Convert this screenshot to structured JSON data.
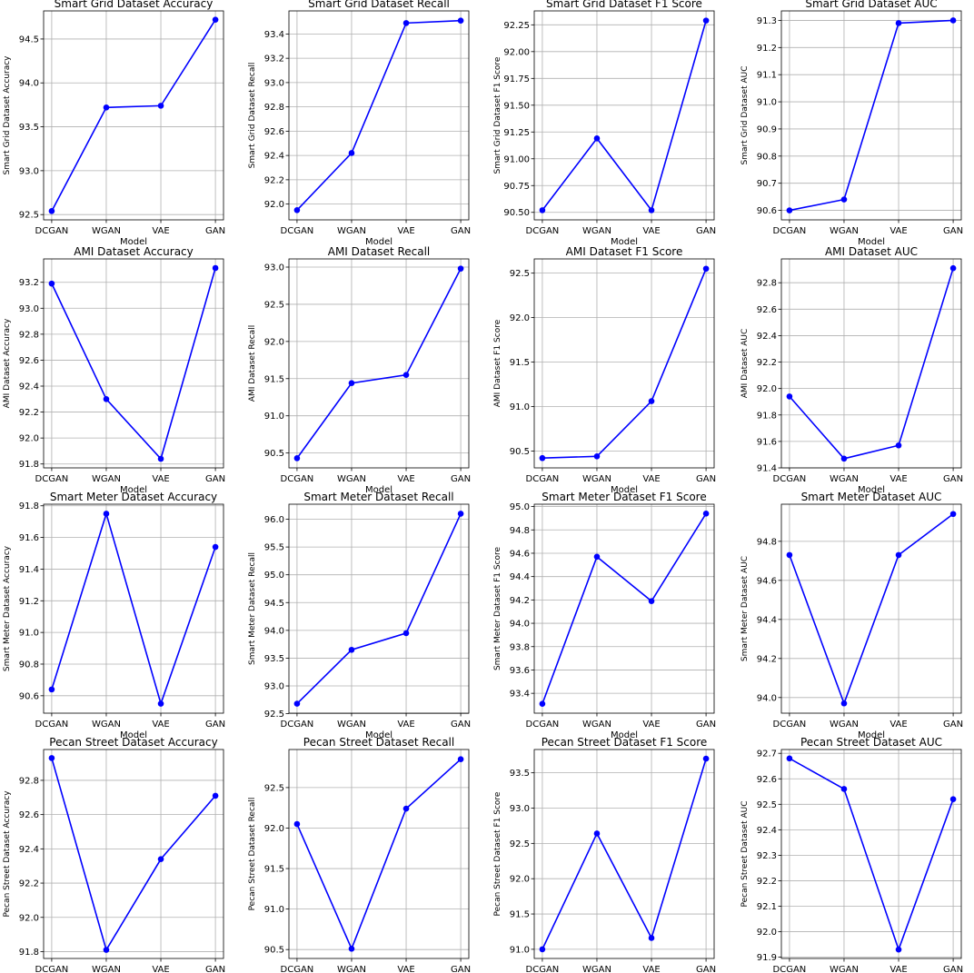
{
  "chart_data": [
    {
      "type": "line",
      "title": "Smart Grid Dataset Accuracy",
      "xlabel": "Model",
      "ylabel": "Smart Grid Dataset Accuracy",
      "categories": [
        "DCGAN",
        "WGAN",
        "VAE",
        "GAN"
      ],
      "values": [
        92.54,
        93.72,
        93.74,
        94.72
      ],
      "yticks": [
        "92.5",
        "93.0",
        "93.5",
        "94.0",
        "94.5"
      ],
      "ylim": [
        92.44,
        94.82
      ],
      "grid": true,
      "color": "#0000ff"
    },
    {
      "type": "line",
      "title": "Smart Grid Dataset Recall",
      "xlabel": "Model",
      "ylabel": "Smart Grid Dataset Recall",
      "categories": [
        "DCGAN",
        "WGAN",
        "VAE",
        "GAN"
      ],
      "values": [
        91.95,
        92.42,
        93.49,
        93.51
      ],
      "yticks": [
        "92.0",
        "92.2",
        "92.4",
        "92.6",
        "92.8",
        "93.0",
        "93.2",
        "93.4"
      ],
      "ylim": [
        91.87,
        93.59
      ],
      "grid": true,
      "color": "#0000ff"
    },
    {
      "type": "line",
      "title": "Smart Grid Dataset F1 Score",
      "xlabel": "Model",
      "ylabel": "Smart Grid Dataset F1 Score",
      "categories": [
        "DCGAN",
        "WGAN",
        "VAE",
        "GAN"
      ],
      "values": [
        90.52,
        91.19,
        90.52,
        92.29
      ],
      "yticks": [
        "90.50",
        "90.75",
        "91.00",
        "91.25",
        "91.50",
        "91.75",
        "92.00",
        "92.25"
      ],
      "ylim": [
        90.43,
        92.38
      ],
      "grid": true,
      "color": "#0000ff"
    },
    {
      "type": "line",
      "title": "Smart Grid Dataset AUC",
      "xlabel": "Model",
      "ylabel": "Smart Grid Dataset AUC",
      "categories": [
        "DCGAN",
        "WGAN",
        "VAE",
        "GAN"
      ],
      "values": [
        90.6,
        90.64,
        91.29,
        91.3
      ],
      "yticks": [
        "90.6",
        "90.7",
        "90.8",
        "90.9",
        "91.0",
        "91.1",
        "91.2",
        "91.3"
      ],
      "ylim": [
        90.565,
        91.335
      ],
      "grid": true,
      "color": "#0000ff"
    },
    {
      "type": "line",
      "title": "AMI Dataset Accuracy",
      "xlabel": "Model",
      "ylabel": "AMI Dataset Accuracy",
      "categories": [
        "DCGAN",
        "WGAN",
        "VAE",
        "GAN"
      ],
      "values": [
        93.19,
        92.3,
        91.84,
        93.31
      ],
      "yticks": [
        "91.8",
        "92.0",
        "92.2",
        "92.4",
        "92.6",
        "92.8",
        "93.0",
        "93.2"
      ],
      "ylim": [
        91.77,
        93.38
      ],
      "grid": true,
      "color": "#0000ff"
    },
    {
      "type": "line",
      "title": "AMI Dataset Recall",
      "xlabel": "Model",
      "ylabel": "AMI Dataset Recall",
      "categories": [
        "DCGAN",
        "WGAN",
        "VAE",
        "GAN"
      ],
      "values": [
        90.43,
        91.44,
        91.55,
        92.98
      ],
      "yticks": [
        "90.5",
        "91.0",
        "91.5",
        "92.0",
        "92.5",
        "93.0"
      ],
      "ylim": [
        90.3,
        93.11
      ],
      "grid": true,
      "color": "#0000ff"
    },
    {
      "type": "line",
      "title": "AMI Dataset F1 Score",
      "xlabel": "Model",
      "ylabel": "AMI Dataset F1 Score",
      "categories": [
        "DCGAN",
        "WGAN",
        "VAE",
        "GAN"
      ],
      "values": [
        90.42,
        90.44,
        91.06,
        92.55
      ],
      "yticks": [
        "90.5",
        "91.0",
        "91.5",
        "92.0",
        "92.5"
      ],
      "ylim": [
        90.31,
        92.66
      ],
      "grid": true,
      "color": "#0000ff"
    },
    {
      "type": "line",
      "title": "AMI Dataset AUC",
      "xlabel": "Model",
      "ylabel": "AMI Dataset AUC",
      "categories": [
        "DCGAN",
        "WGAN",
        "VAE",
        "GAN"
      ],
      "values": [
        91.94,
        91.47,
        91.57,
        92.91
      ],
      "yticks": [
        "91.4",
        "91.6",
        "91.8",
        "92.0",
        "92.2",
        "92.4",
        "92.6",
        "92.8"
      ],
      "ylim": [
        91.4,
        92.98
      ],
      "grid": true,
      "color": "#0000ff"
    },
    {
      "type": "line",
      "title": "Smart Meter Dataset Accuracy",
      "xlabel": "Model",
      "ylabel": "Smart Meter Dataset Accuracy",
      "categories": [
        "DCGAN",
        "WGAN",
        "VAE",
        "GAN"
      ],
      "values": [
        90.64,
        91.75,
        90.55,
        91.54
      ],
      "yticks": [
        "90.6",
        "90.8",
        "91.0",
        "91.2",
        "91.4",
        "91.6",
        "91.8"
      ],
      "ylim": [
        90.49,
        91.81
      ],
      "grid": true,
      "color": "#0000ff"
    },
    {
      "type": "line",
      "title": "Smart Meter Dataset Recall",
      "xlabel": "Model",
      "ylabel": "Smart Meter Dataset Recall",
      "categories": [
        "DCGAN",
        "WGAN",
        "VAE",
        "GAN"
      ],
      "values": [
        92.68,
        93.65,
        93.95,
        96.1
      ],
      "yticks": [
        "92.5",
        "93.0",
        "93.5",
        "94.0",
        "94.5",
        "95.0",
        "95.5",
        "96.0"
      ],
      "ylim": [
        92.51,
        96.27
      ],
      "grid": true,
      "color": "#0000ff"
    },
    {
      "type": "line",
      "title": "Smart Meter Dataset F1 Score",
      "xlabel": "Model",
      "ylabel": "Smart Meter Dataset F1 Score",
      "categories": [
        "DCGAN",
        "WGAN",
        "VAE",
        "GAN"
      ],
      "values": [
        93.31,
        94.57,
        94.19,
        94.94
      ],
      "yticks": [
        "93.4",
        "93.6",
        "93.8",
        "94.0",
        "94.2",
        "94.4",
        "94.6",
        "94.8",
        "95.0"
      ],
      "ylim": [
        93.23,
        95.02
      ],
      "grid": true,
      "color": "#0000ff"
    },
    {
      "type": "line",
      "title": "Smart Meter Dataset AUC",
      "xlabel": "Model",
      "ylabel": "Smart Meter Dataset AUC",
      "categories": [
        "DCGAN",
        "WGAN",
        "VAE",
        "GAN"
      ],
      "values": [
        94.73,
        93.97,
        94.73,
        94.94
      ],
      "yticks": [
        "94.0",
        "94.2",
        "94.4",
        "94.6",
        "94.8"
      ],
      "ylim": [
        93.92,
        94.99
      ],
      "grid": true,
      "color": "#0000ff"
    },
    {
      "type": "line",
      "title": "Pecan Street Dataset Accuracy",
      "xlabel": "Model",
      "ylabel": "Pecan Street Dataset Accuracy",
      "categories": [
        "DCGAN",
        "WGAN",
        "VAE",
        "GAN"
      ],
      "values": [
        92.93,
        91.81,
        92.34,
        92.71
      ],
      "yticks": [
        "91.8",
        "92.0",
        "92.2",
        "92.4",
        "92.6",
        "92.8"
      ],
      "ylim": [
        91.76,
        92.98
      ],
      "grid": true,
      "color": "#0000ff"
    },
    {
      "type": "line",
      "title": "Pecan Street Dataset Recall",
      "xlabel": "Model",
      "ylabel": "Pecan Street Dataset Recall",
      "categories": [
        "DCGAN",
        "WGAN",
        "VAE",
        "GAN"
      ],
      "values": [
        92.05,
        90.51,
        92.24,
        92.85
      ],
      "yticks": [
        "90.5",
        "91.0",
        "91.5",
        "92.0",
        "92.5"
      ],
      "ylim": [
        90.39,
        92.97
      ],
      "grid": true,
      "color": "#0000ff"
    },
    {
      "type": "line",
      "title": "Pecan Street Dataset F1 Score",
      "xlabel": "Model",
      "ylabel": "Pecan Street Dataset F1 Score",
      "categories": [
        "DCGAN",
        "WGAN",
        "VAE",
        "GAN"
      ],
      "values": [
        91.0,
        92.64,
        91.16,
        93.7
      ],
      "yticks": [
        "91.0",
        "91.5",
        "92.0",
        "92.5",
        "93.0",
        "93.5"
      ],
      "ylim": [
        90.87,
        93.83
      ],
      "grid": true,
      "color": "#0000ff"
    },
    {
      "type": "line",
      "title": "Pecan Street Dataset AUC",
      "xlabel": "Model",
      "ylabel": "Pecan Street Dataset AUC",
      "categories": [
        "DCGAN",
        "WGAN",
        "VAE",
        "GAN"
      ],
      "values": [
        92.68,
        92.56,
        91.93,
        92.52
      ],
      "yticks": [
        "91.9",
        "92.0",
        "92.1",
        "92.2",
        "92.3",
        "92.4",
        "92.5",
        "92.6",
        "92.7"
      ],
      "ylim": [
        91.895,
        92.715
      ],
      "grid": true,
      "color": "#0000ff"
    }
  ]
}
